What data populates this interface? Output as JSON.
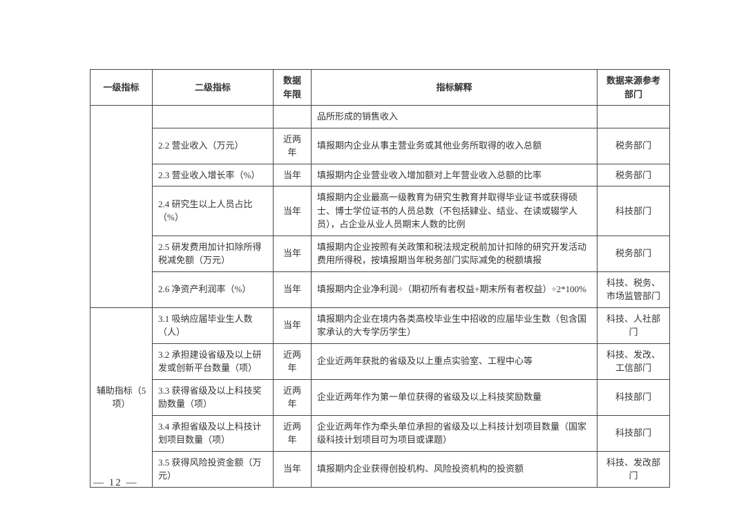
{
  "headers": {
    "c1": "一级指标",
    "c2": "二级指标",
    "c3": "数据年限",
    "c4": "指标解释",
    "c5": "数据来源参考部门"
  },
  "rows": [
    {
      "c1": "",
      "c2": "",
      "c3": "",
      "c4": "品所形成的销售收入",
      "c5": ""
    },
    {
      "c1": "",
      "c2": "2.2 营业收入（万元）",
      "c3": "近两年",
      "c4": "填报期内企业从事主营业务或其他业务所取得的收入总额",
      "c5": "税务部门"
    },
    {
      "c1": "",
      "c2": "2.3 营业收入增长率（%）",
      "c3": "当年",
      "c4": "填报期内企业营业收入增加额对上年营业收入总额的比率",
      "c5": "税务部门"
    },
    {
      "c1": "",
      "c2": "2.4 研究生以上人员占比（%）",
      "c3": "当年",
      "c4": "填报期内企业最高一级教育为研究生教育并取得毕业证书或获得硕士、博士学位证书的人员总数（不包括肄业、结业、在读或辍学人员），占企业从业人员期末人数的比例",
      "c5": "科技部门"
    },
    {
      "c1": "",
      "c2": "2.5 研发费用加计扣除所得税减免额（万元）",
      "c3": "当年",
      "c4": "填报期内企业按照有关政策和税法规定税前加计扣除的研究开发活动费用所得税，按填报期当年税务部门实际减免的税额填报",
      "c5": "税务部门"
    },
    {
      "c1": "",
      "c2": "2.6 净资产利润率（%）",
      "c3": "当年",
      "c4": "填报期内企业净利润÷（期初所有者权益+期末所有者权益）÷2*100%",
      "c5": "科技、税务、市场监管部门"
    },
    {
      "c1": "辅助指标（5 项）",
      "c2": "3.1 吸纳应届毕业生人数（人）",
      "c3": "当年",
      "c4": "填报期内企业在境内各类高校毕业生中招收的应届毕业生数（包含国家承认的大专学历学生）",
      "c5": "科技、人社部门"
    },
    {
      "c1": "",
      "c2": "3.2 承担建设省级及以上研发或创新平台数量（项）",
      "c3": "近两年",
      "c4": "企业近两年获批的省级及以上重点实验室、工程中心等",
      "c5": "科技、发改、工信部门"
    },
    {
      "c1": "",
      "c2": "3.3 获得省级及以上科技奖励数量（项）",
      "c3": "近两年",
      "c4": "企业近两年作为第一单位获得的省级及以上科技奖励数量",
      "c5": "科技部门"
    },
    {
      "c1": "",
      "c2": "3.4 承担省级及以上科技计划项目数量（项）",
      "c3": "近两年",
      "c4": "企业近两年作为牵头单位承担的省级及以上科技计划项目数量（国家级科技计划项目可为项目或课题）",
      "c5": "科技部门"
    },
    {
      "c1": "",
      "c2": "3.5 获得风险投资金额（万元）",
      "c3": "当年",
      "c4": "填报期内企业获得创投机构、风险投资机构的投资额",
      "c5": "科技、发改部门"
    }
  ],
  "group_label": "辅助指标（5 项）",
  "page_number": "— 12 —"
}
